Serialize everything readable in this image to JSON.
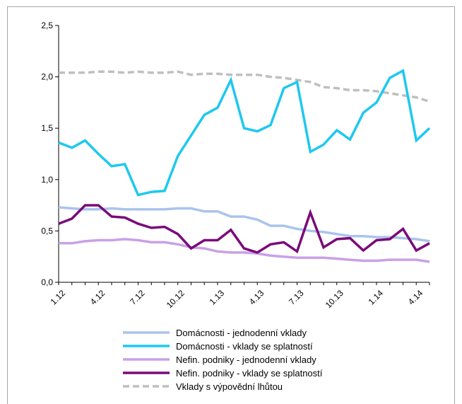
{
  "chart_data": {
    "type": "line",
    "title": "",
    "xlabel": "",
    "ylabel": "",
    "ylim": [
      0,
      2.5
    ],
    "yticks": [
      "0,0",
      "0,5",
      "1,0",
      "1,5",
      "2,0",
      "2,5"
    ],
    "ytick_values": [
      0,
      0.5,
      1.0,
      1.5,
      2.0,
      2.5
    ],
    "x": [
      "1.12",
      "2.12",
      "3.12",
      "4.12",
      "5.12",
      "6.12",
      "7.12",
      "8.12",
      "9.12",
      "10.12",
      "11.12",
      "12.12",
      "1.13",
      "2.13",
      "3.13",
      "4.13",
      "5.13",
      "6.13",
      "7.13",
      "8.13",
      "9.13",
      "10.13",
      "11.13",
      "12.13",
      "1.14",
      "2.14",
      "3.14",
      "4.14",
      "5.14"
    ],
    "xtick_labels": [
      "1.12",
      "4.12",
      "7.12",
      "10.12",
      "1.13",
      "4.13",
      "7.13",
      "10.13",
      "1.14",
      "4.14"
    ],
    "xtick_indices": [
      0,
      3,
      6,
      9,
      12,
      15,
      18,
      21,
      24,
      27
    ],
    "grid": false,
    "legend_position": "bottom",
    "series": [
      {
        "name": "Domácnosti - jednodenní vklady",
        "color": "#a9c4eb",
        "dash": "solid",
        "values": [
          0.73,
          0.72,
          0.71,
          0.71,
          0.72,
          0.71,
          0.71,
          0.71,
          0.71,
          0.72,
          0.72,
          0.69,
          0.69,
          0.64,
          0.64,
          0.61,
          0.55,
          0.55,
          0.52,
          0.5,
          0.49,
          0.47,
          0.45,
          0.45,
          0.44,
          0.44,
          0.43,
          0.42,
          0.4
        ]
      },
      {
        "name": "Domácnosti - vklady se splatností",
        "color": "#1ec8f0",
        "dash": "solid",
        "values": [
          1.36,
          1.31,
          1.38,
          1.25,
          1.13,
          1.15,
          0.85,
          0.88,
          0.89,
          1.23,
          1.43,
          1.63,
          1.7,
          1.97,
          1.5,
          1.47,
          1.53,
          1.89,
          1.95,
          1.27,
          1.34,
          1.48,
          1.39,
          1.65,
          1.75,
          1.99,
          2.06,
          1.38,
          1.5
        ]
      },
      {
        "name": "Nefin. podniky - jednodenní vklady",
        "color": "#c9a0e8",
        "dash": "solid",
        "values": [
          0.38,
          0.38,
          0.4,
          0.41,
          0.41,
          0.42,
          0.41,
          0.39,
          0.39,
          0.37,
          0.34,
          0.33,
          0.3,
          0.29,
          0.29,
          0.28,
          0.26,
          0.25,
          0.24,
          0.24,
          0.24,
          0.23,
          0.22,
          0.21,
          0.21,
          0.22,
          0.22,
          0.22,
          0.2
        ]
      },
      {
        "name": "Nefin. podniky - vklady se splatností",
        "color": "#7a0a7a",
        "dash": "solid",
        "values": [
          0.57,
          0.62,
          0.75,
          0.75,
          0.64,
          0.63,
          0.57,
          0.53,
          0.54,
          0.47,
          0.33,
          0.41,
          0.41,
          0.51,
          0.33,
          0.29,
          0.37,
          0.39,
          0.3,
          0.68,
          0.34,
          0.42,
          0.43,
          0.31,
          0.41,
          0.42,
          0.52,
          0.31,
          0.38
        ]
      },
      {
        "name": "Vklady s výpovědní lhůtou",
        "color": "#bfbfbf",
        "dash": "dashed",
        "values": [
          2.04,
          2.04,
          2.04,
          2.05,
          2.05,
          2.04,
          2.05,
          2.04,
          2.04,
          2.05,
          2.02,
          2.03,
          2.03,
          2.02,
          2.02,
          2.02,
          2.0,
          1.99,
          1.97,
          1.95,
          1.9,
          1.89,
          1.87,
          1.87,
          1.86,
          1.84,
          1.82,
          1.8,
          1.76
        ]
      }
    ]
  }
}
